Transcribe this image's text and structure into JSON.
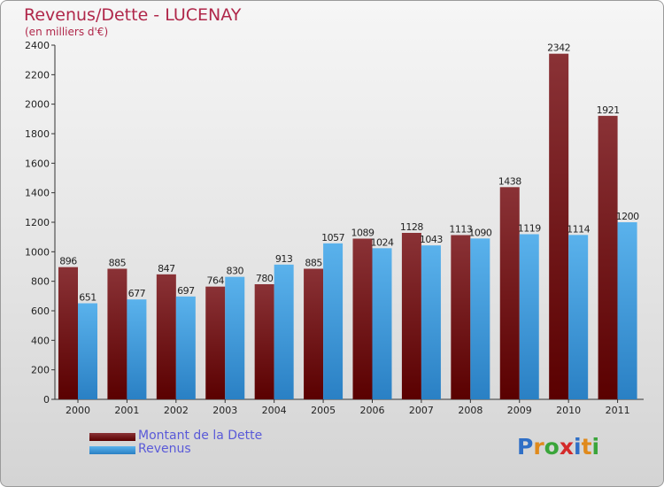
{
  "title": "Revenus/Dette - LUCENAY",
  "subtitle": "(en milliers d'€)",
  "colors": {
    "title": "#b0274a",
    "debt_top": "#8a3236",
    "debt_bottom": "#5a0000",
    "revenue_top": "#5ab2ec",
    "revenue_bottom": "#2a80c4",
    "legend_text": "#5a5ad8"
  },
  "chart_data": {
    "type": "bar",
    "categories": [
      "2000",
      "2001",
      "2002",
      "2003",
      "2004",
      "2005",
      "2006",
      "2007",
      "2008",
      "2009",
      "2010",
      "2011"
    ],
    "series": [
      {
        "name": "Montant de la Dette",
        "values": [
          896,
          885,
          847,
          764,
          780,
          885,
          1089,
          1128,
          1113,
          1438,
          2342,
          1921
        ]
      },
      {
        "name": "Revenus",
        "values": [
          651,
          677,
          697,
          830,
          913,
          1057,
          1024,
          1043,
          1090,
          1119,
          1114,
          1200
        ]
      }
    ],
    "ylim": [
      0,
      2400
    ],
    "yticks": [
      0,
      200,
      400,
      600,
      800,
      1000,
      1200,
      1400,
      1600,
      1800,
      2000,
      2200,
      2400
    ],
    "grid": false,
    "legend_position": "bottom-left"
  },
  "legend": {
    "debt_label": "Montant de la Dette",
    "revenue_label": "Revenus"
  },
  "logo": {
    "letters": [
      "P",
      "r",
      "o",
      "x",
      "i",
      "t",
      "i"
    ],
    "letter_colors": [
      "#2f6fc6",
      "#e08a1c",
      "#3aa53a",
      "#d42a2a",
      "#2f6fc6",
      "#e08a1c",
      "#3aa53a"
    ]
  }
}
